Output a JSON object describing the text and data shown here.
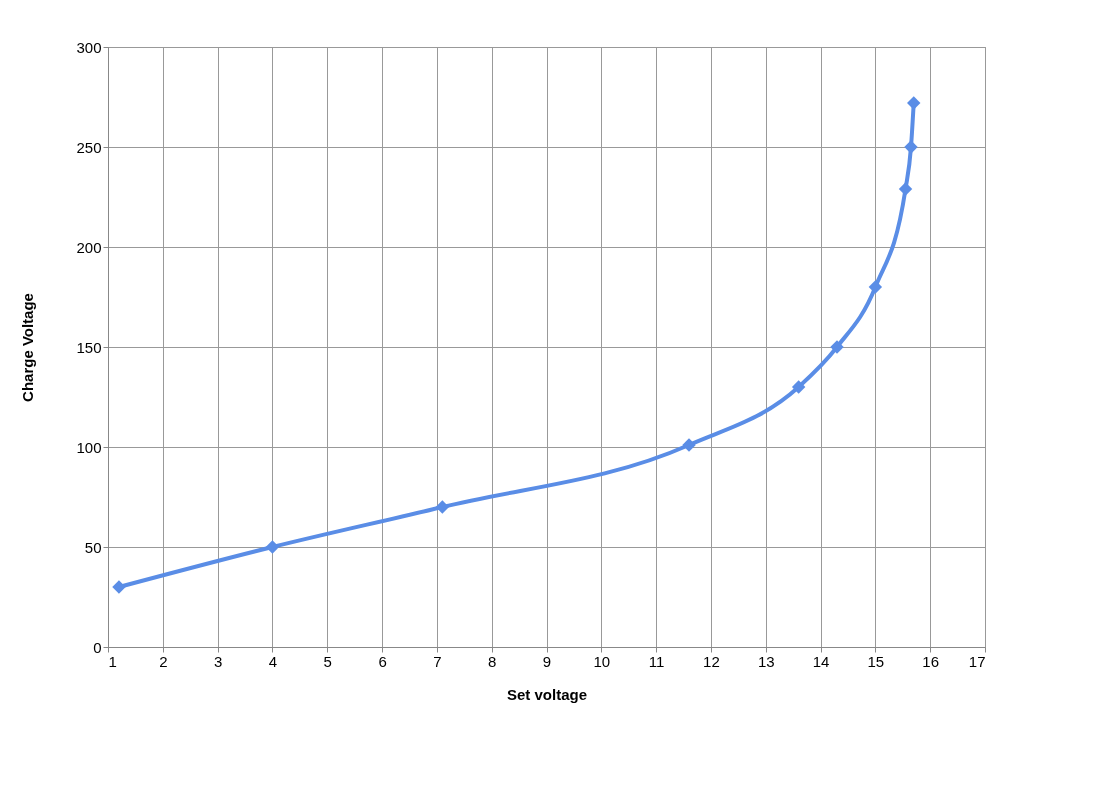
{
  "chart_data": {
    "type": "line",
    "xlabel": "Set voltage",
    "ylabel": "Charge Voltage",
    "x": [
      1.2,
      4,
      7.1,
      11.6,
      13.6,
      14.3,
      15,
      15.55,
      15.65,
      15.7
    ],
    "series": [
      {
        "color": "#5a8de6",
        "values": [
          30,
          50,
          70,
          101,
          130,
          150,
          180,
          229,
          250,
          272
        ]
      }
    ],
    "xlim": [
      1,
      17
    ],
    "xticks": [
      1,
      2,
      3,
      4,
      5,
      6,
      7,
      8,
      9,
      10,
      11,
      12,
      13,
      14,
      15,
      16,
      17
    ],
    "ylim": [
      0,
      300
    ],
    "yticks": [
      0,
      50,
      100,
      150,
      200,
      250,
      300
    ],
    "grid": true,
    "marker": "diamond",
    "line_style": "solid"
  }
}
